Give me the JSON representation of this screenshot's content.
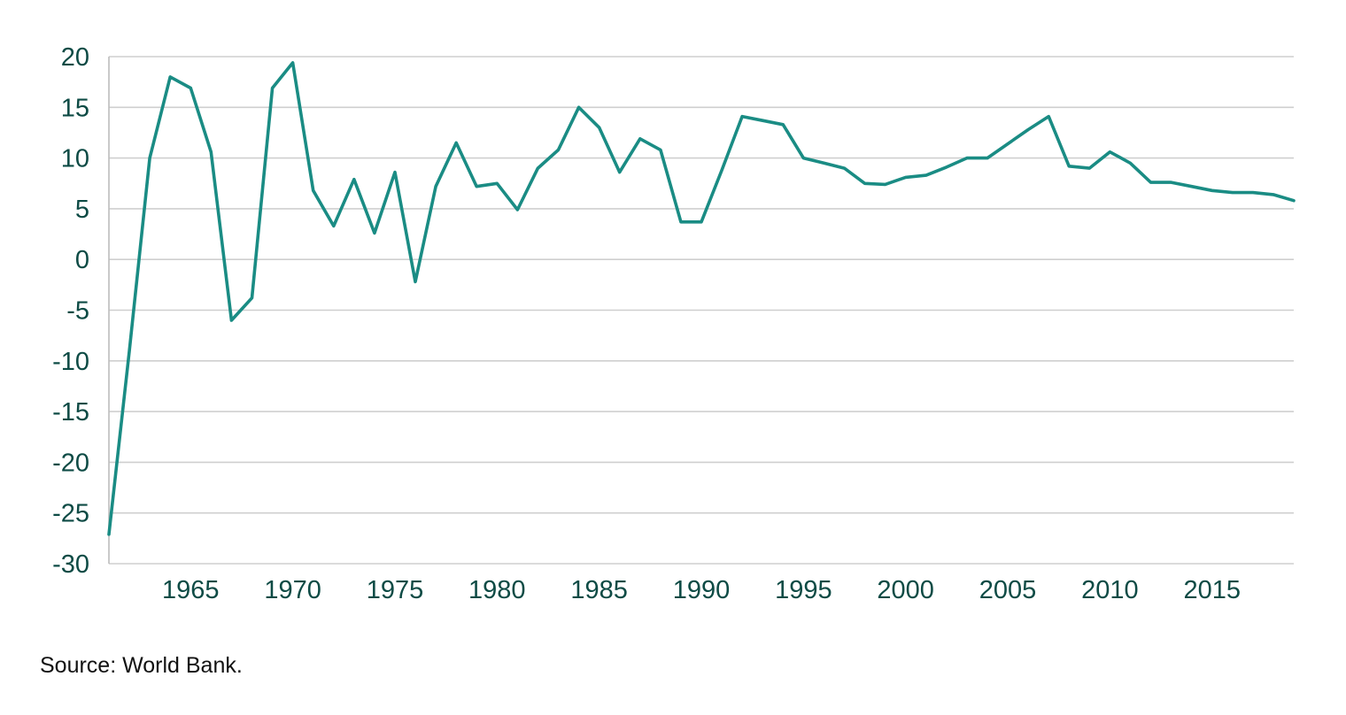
{
  "chart_data": {
    "type": "line",
    "title": "",
    "xlabel": "",
    "ylabel": "",
    "xlim": [
      1961,
      2019
    ],
    "ylim": [
      -30,
      20
    ],
    "yticks": [
      -30,
      -25,
      -20,
      -15,
      -10,
      -5,
      0,
      5,
      10,
      15,
      20
    ],
    "xticks": [
      1965,
      1970,
      1975,
      1980,
      1985,
      1990,
      1995,
      2000,
      2005,
      2010,
      2015
    ],
    "grid": true,
    "series": [
      {
        "name": "",
        "color": "#1a8c84",
        "x": [
          1961,
          1962,
          1963,
          1964,
          1965,
          1966,
          1967,
          1968,
          1969,
          1970,
          1971,
          1972,
          1973,
          1974,
          1975,
          1976,
          1977,
          1978,
          1979,
          1980,
          1981,
          1982,
          1983,
          1984,
          1985,
          1986,
          1987,
          1988,
          1989,
          1990,
          1991,
          1992,
          1993,
          1994,
          1995,
          1996,
          1997,
          1998,
          1999,
          2000,
          2001,
          2002,
          2003,
          2004,
          2005,
          2006,
          2007,
          2008,
          2009,
          2010,
          2011,
          2012,
          2013,
          2014,
          2015,
          2016,
          2017,
          2018,
          2019
        ],
        "y": [
          -27.1,
          -9.0,
          10.0,
          18.0,
          16.9,
          10.6,
          -6.0,
          -3.8,
          16.9,
          19.4,
          6.8,
          3.3,
          7.9,
          2.6,
          8.6,
          -2.2,
          7.2,
          11.5,
          7.2,
          7.5,
          4.9,
          9.0,
          10.8,
          15.0,
          13.0,
          8.6,
          11.9,
          10.8,
          3.7,
          3.7,
          8.8,
          14.1,
          13.7,
          13.3,
          10.0,
          9.5,
          9.0,
          7.5,
          7.4,
          8.1,
          8.3,
          9.1,
          10.0,
          10.0,
          11.4,
          12.8,
          14.1,
          9.2,
          9.0,
          10.6,
          9.5,
          7.6,
          7.6,
          7.2,
          6.8,
          6.6,
          6.6,
          6.4,
          5.8
        ]
      }
    ]
  },
  "source": "Source: World Bank."
}
